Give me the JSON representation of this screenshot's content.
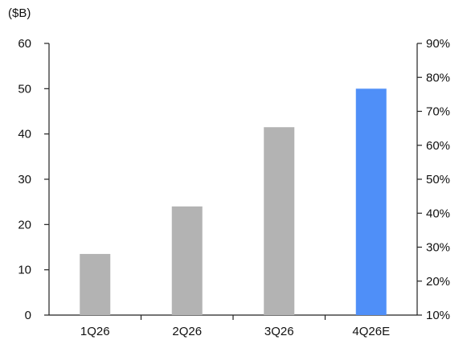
{
  "chart_data": {
    "type": "bar",
    "title": "",
    "xlabel": "",
    "ylabel": "($B)",
    "y2label": "",
    "categories": [
      "1Q26",
      "2Q26",
      "3Q26",
      "4Q26E"
    ],
    "series": [
      {
        "values": [
          13.5,
          24,
          41.5,
          50
        ],
        "colors": [
          "#b3b3b3",
          "#b3b3b3",
          "#b3b3b3",
          "#4f8ff8"
        ]
      }
    ],
    "ylim": [
      0,
      60
    ],
    "yticks": [
      "0",
      "10",
      "20",
      "30",
      "40",
      "50",
      "60"
    ],
    "y2lim": [
      10,
      90
    ],
    "y2ticks": [
      "10%",
      "20%",
      "30%",
      "40%",
      "50%",
      "60%",
      "70%",
      "80%",
      "90%"
    ],
    "grid": false,
    "legend": "none",
    "colors": {
      "actual": "#b3b3b3",
      "estimate": "#4f8ff8",
      "axis": "#222222",
      "text": "#111111"
    }
  }
}
